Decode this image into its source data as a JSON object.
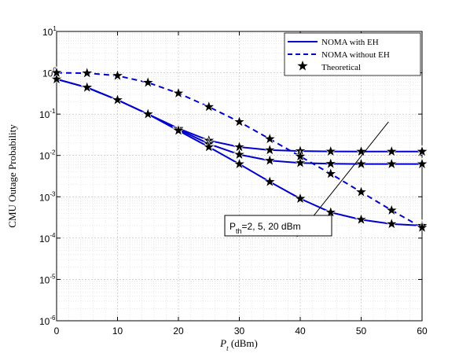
{
  "chart_data": {
    "type": "line",
    "xlabel": "P",
    "xlabel_sub": "t",
    "xlabel_unit": " (dBm)",
    "ylabel": "CMU Outage Probability",
    "xlim": [
      0,
      60
    ],
    "ylim": [
      1e-06,
      10
    ],
    "yscale": "log",
    "grid": true,
    "legend_position": "top-right",
    "x_ticks": [
      0,
      10,
      20,
      30,
      40,
      50,
      60
    ],
    "y_ticks": [
      -6,
      -5,
      -4,
      -3,
      -2,
      -1,
      0,
      1
    ],
    "y_tick_base": "10",
    "colors": {
      "line": "#0000cc",
      "marker": "#000000",
      "grid": "#d0d0d0"
    },
    "legend": [
      {
        "label": "NOMA with EH",
        "style": "solid"
      },
      {
        "label": "NOMA without EH",
        "style": "dashed"
      },
      {
        "label": "Theoretical",
        "style": "star"
      }
    ],
    "series": [
      {
        "style": "solid",
        "x": [
          0,
          5,
          10,
          15,
          20,
          25,
          30,
          35,
          40,
          45,
          50,
          55,
          60
        ],
        "y": [
          0.7,
          0.44,
          0.22,
          0.1,
          0.045,
          0.023,
          0.016,
          0.0135,
          0.0128,
          0.0125,
          0.0124,
          0.0124,
          0.0124
        ]
      },
      {
        "style": "solid",
        "x": [
          0,
          5,
          10,
          15,
          20,
          25,
          30,
          35,
          40,
          45,
          50,
          55,
          60
        ],
        "y": [
          0.7,
          0.44,
          0.22,
          0.1,
          0.043,
          0.019,
          0.0105,
          0.0075,
          0.0066,
          0.0063,
          0.0062,
          0.0062,
          0.0062
        ]
      },
      {
        "style": "solid",
        "x": [
          0,
          5,
          10,
          15,
          20,
          25,
          30,
          35,
          40,
          45,
          50,
          55,
          60
        ],
        "y": [
          0.7,
          0.44,
          0.22,
          0.1,
          0.04,
          0.016,
          0.0062,
          0.0023,
          0.0009,
          0.00042,
          0.00028,
          0.00022,
          0.0002
        ]
      },
      {
        "style": "dashed",
        "x": [
          0,
          5,
          10,
          15,
          20,
          25,
          30,
          35,
          40,
          45,
          50,
          55,
          60
        ],
        "y": [
          1.0,
          0.98,
          0.85,
          0.58,
          0.32,
          0.15,
          0.065,
          0.025,
          0.0095,
          0.0036,
          0.0013,
          0.00047,
          0.00018
        ]
      }
    ],
    "theoretical_markers": [
      {
        "x": [
          0,
          5,
          10,
          15,
          20,
          25,
          30,
          35,
          40,
          45,
          50,
          55,
          60
        ],
        "y": [
          0.7,
          0.44,
          0.22,
          0.1,
          0.045,
          0.023,
          0.016,
          0.0135,
          0.0128,
          0.0125,
          0.0124,
          0.0124,
          0.0124
        ]
      },
      {
        "x": [
          0,
          5,
          10,
          15,
          20,
          25,
          30,
          35,
          40,
          45,
          50,
          55,
          60
        ],
        "y": [
          0.7,
          0.44,
          0.22,
          0.1,
          0.043,
          0.019,
          0.0105,
          0.0075,
          0.0066,
          0.0063,
          0.0062,
          0.0062,
          0.0062
        ]
      },
      {
        "x": [
          0,
          5,
          10,
          15,
          20,
          25,
          30,
          35,
          40,
          45,
          50,
          55,
          60
        ],
        "y": [
          0.7,
          0.44,
          0.22,
          0.1,
          0.04,
          0.016,
          0.0062,
          0.0023,
          0.0009,
          0.00042,
          0.00028,
          0.00022,
          0.0002
        ]
      },
      {
        "x": [
          0,
          5,
          10,
          15,
          20,
          25,
          30,
          35,
          40,
          45,
          50,
          55,
          60
        ],
        "y": [
          1.0,
          0.98,
          0.85,
          0.58,
          0.32,
          0.15,
          0.065,
          0.025,
          0.0095,
          0.0036,
          0.0013,
          0.00047,
          0.00018
        ]
      }
    ],
    "annotation": {
      "text_main": "P",
      "text_sub": "th",
      "text_rest": "=2, 5, 20 dBm",
      "arrow_from": [
        54.5,
        0.065
      ],
      "arrow_to": [
        39.5,
        0.00011
      ]
    }
  }
}
